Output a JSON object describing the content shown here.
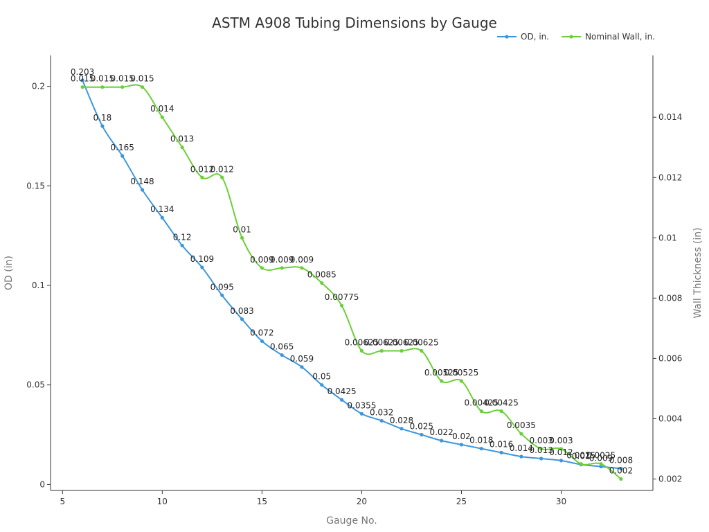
{
  "chart_data": {
    "type": "line",
    "title": "ASTM A908 Tubing Dimensions by Gauge",
    "xlabel": "Gauge No.",
    "ylabel_left": "OD (in)",
    "ylabel_right": "Wall Thickness (in)",
    "x": [
      6,
      7,
      8,
      9,
      10,
      11,
      12,
      13,
      14,
      15,
      16,
      17,
      18,
      19,
      20,
      21,
      22,
      23,
      24,
      25,
      26,
      27,
      28,
      29,
      30,
      31,
      32,
      33
    ],
    "xlim": [
      4.4,
      34.6
    ],
    "x_ticks": [
      5,
      10,
      15,
      20,
      25,
      30
    ],
    "ylim_left": [
      -0.003,
      0.2155
    ],
    "y_ticks_left": [
      0,
      0.05,
      0.1,
      0.15,
      0.2
    ],
    "ylim_right": [
      0.00162,
      0.01605
    ],
    "y_ticks_right": [
      0.002,
      0.004,
      0.006,
      0.008,
      0.01,
      0.012,
      0.014
    ],
    "legend_position": "top-right",
    "series": [
      {
        "name": "OD, in.",
        "axis": "left",
        "color": "#3b97dd",
        "values": [
          0.203,
          0.18,
          0.165,
          0.148,
          0.134,
          0.12,
          0.109,
          0.095,
          0.083,
          0.072,
          0.065,
          0.059,
          0.05,
          0.0425,
          0.0355,
          0.032,
          0.028,
          0.025,
          0.022,
          0.02,
          0.018,
          0.016,
          0.014,
          0.013,
          0.012,
          0.01,
          0.009,
          0.008
        ]
      },
      {
        "name": "Nominal Wall, in.",
        "axis": "right",
        "color": "#6bcf3a",
        "values": [
          0.015,
          0.015,
          0.015,
          0.015,
          0.014,
          0.013,
          0.012,
          0.012,
          0.01,
          0.009,
          0.009,
          0.009,
          0.0085,
          0.00775,
          0.00625,
          0.00625,
          0.00625,
          0.00625,
          0.00525,
          0.00525,
          0.00425,
          0.00425,
          0.0035,
          0.003,
          0.003,
          0.0025,
          0.0025,
          0.002
        ]
      }
    ]
  }
}
